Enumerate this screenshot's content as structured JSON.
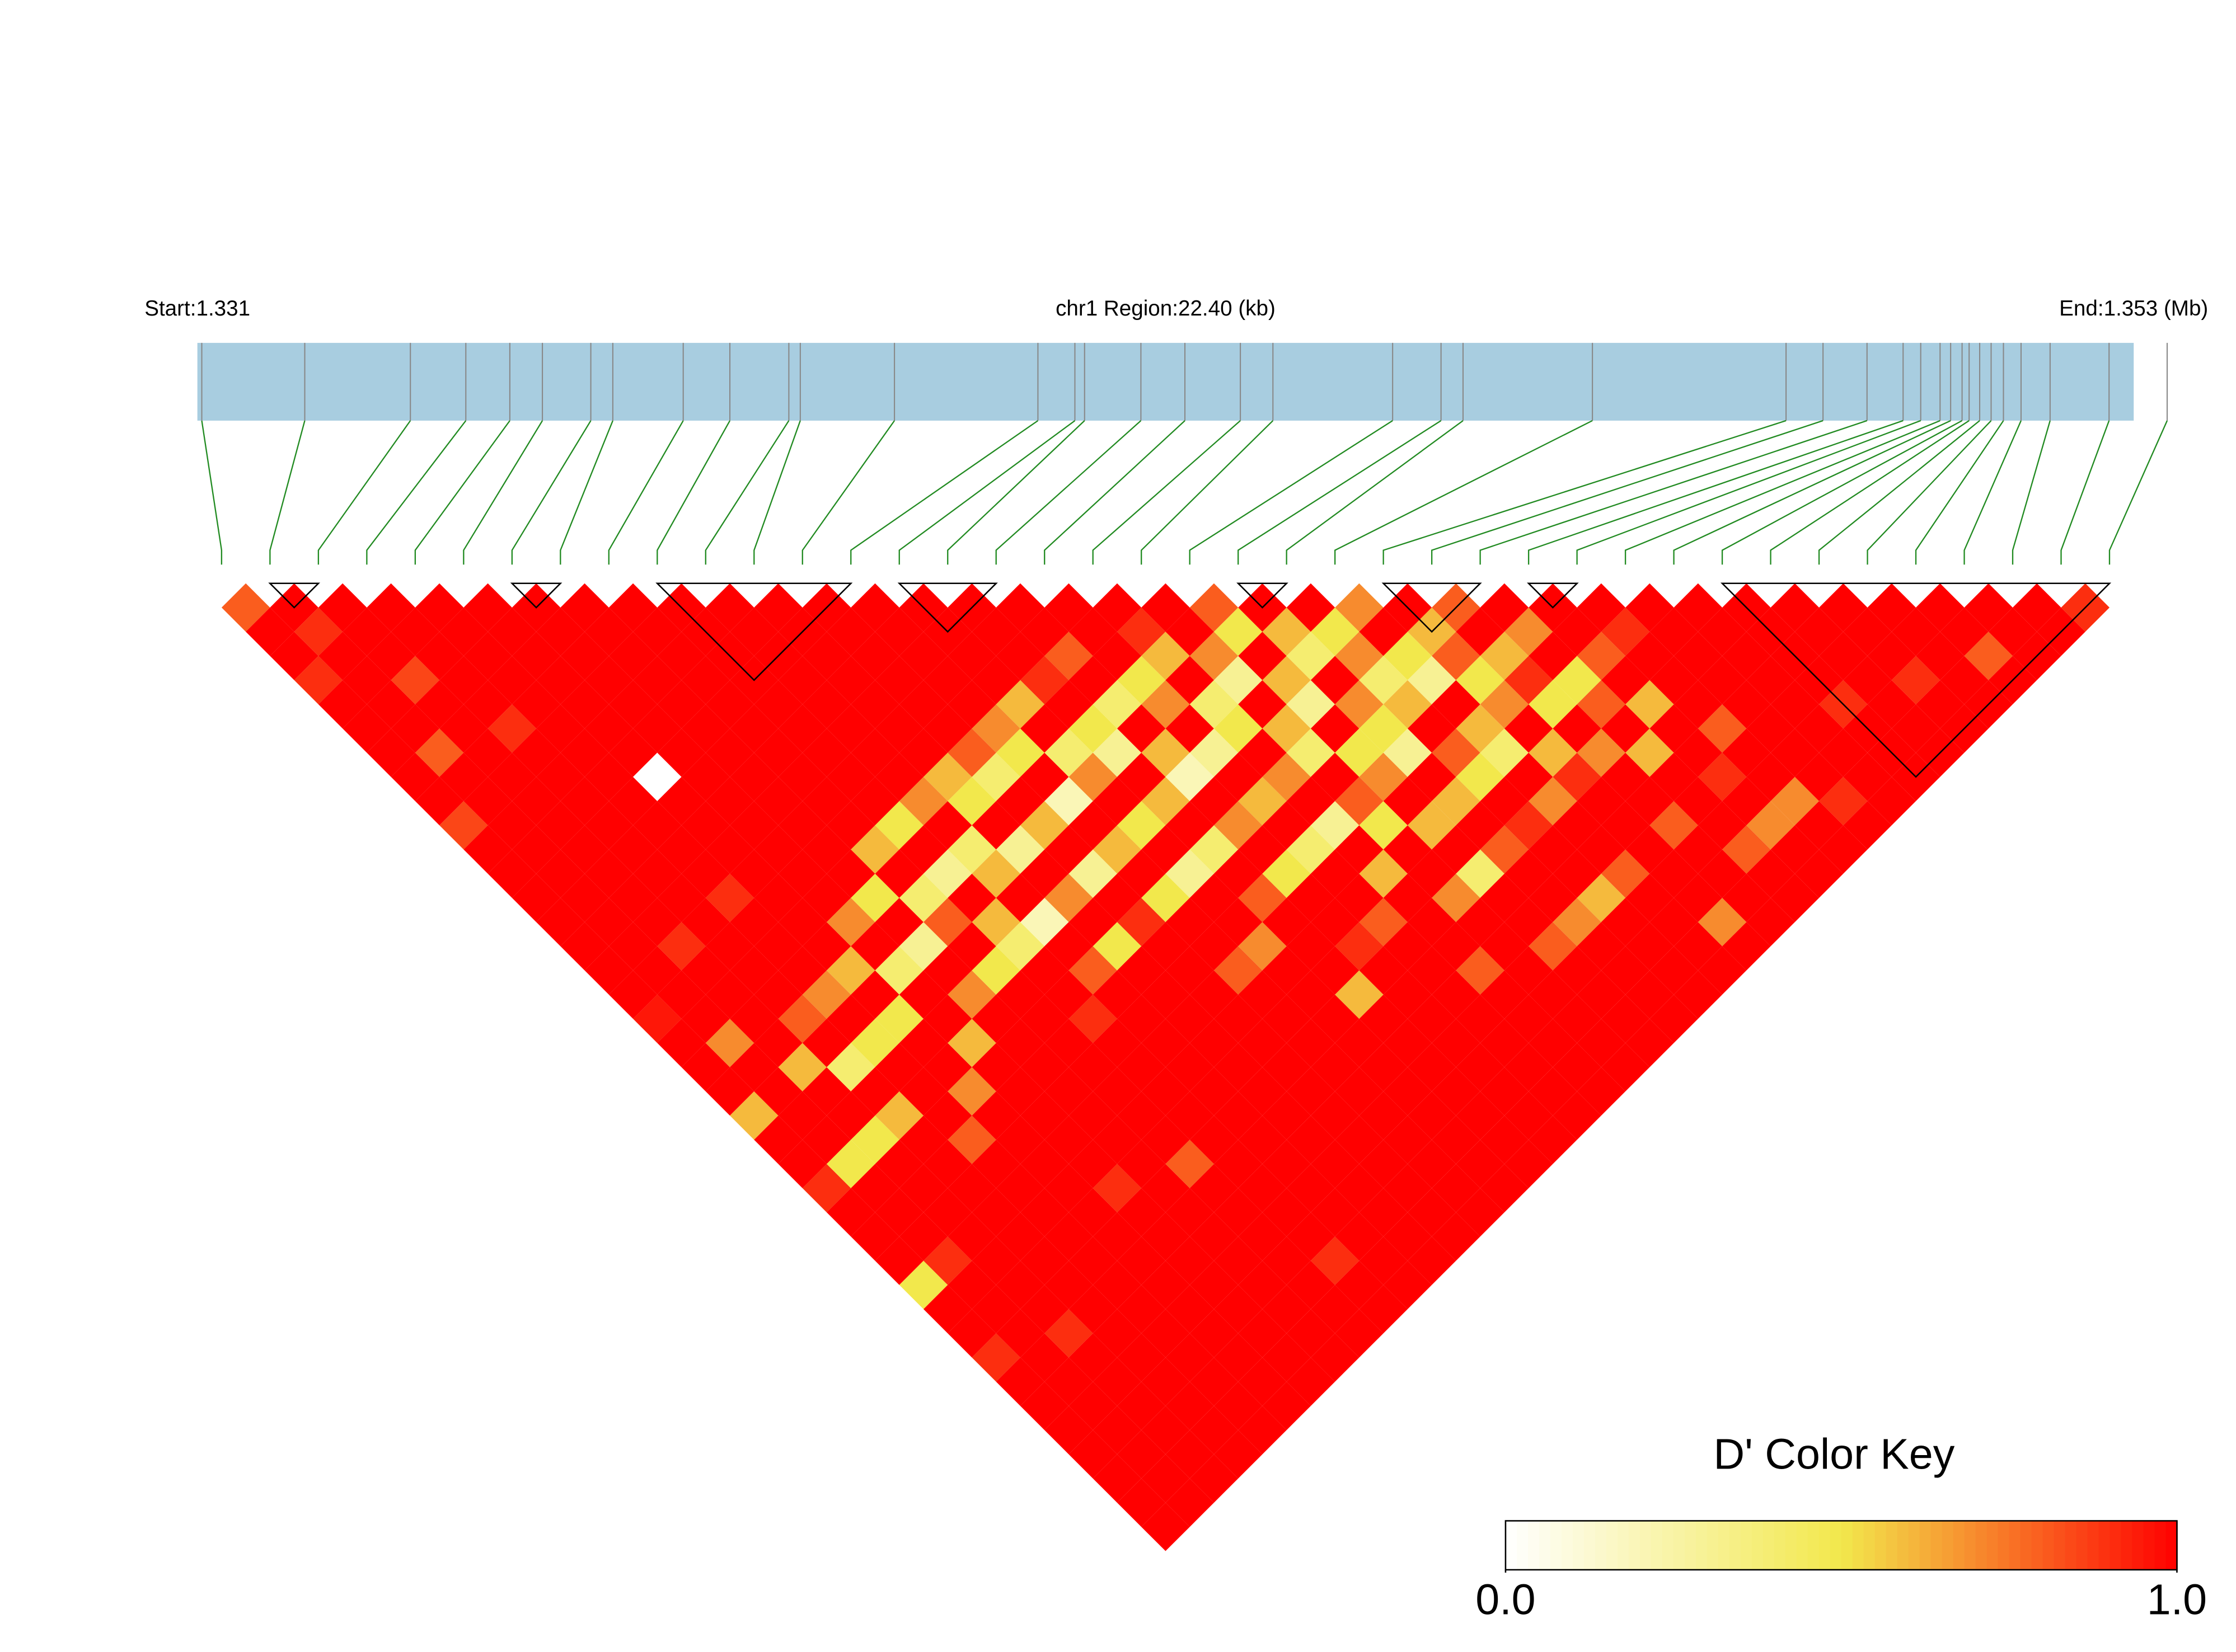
{
  "chart_data": {
    "type": "ld_heatmap",
    "start_label": "Start:1.331",
    "region_label": "chr1 Region:22.40 (kb)",
    "end_label": "End:1.353 (Mb)",
    "xlim": [
      1.331,
      1.353
    ],
    "positions": [
      1.33105,
      1.33222,
      1.33342,
      1.33405,
      1.33455,
      1.33492,
      1.33547,
      1.33572,
      1.33652,
      1.33705,
      1.33772,
      1.33785,
      1.33892,
      1.34055,
      1.34097,
      1.34108,
      1.34172,
      1.34222,
      1.34285,
      1.34322,
      1.34458,
      1.34513,
      1.34538,
      1.34685,
      1.34905,
      1.34947,
      1.34997,
      1.35038,
      1.35058,
      1.3508,
      1.35092,
      1.35105,
      1.35113,
      1.35125,
      1.35138,
      1.35152,
      1.35172,
      1.35205,
      1.35272,
      1.35338
    ],
    "dprime": [
      [
        0.8,
        1,
        1,
        0.9,
        1,
        1,
        1,
        1,
        1,
        0.85,
        1,
        1,
        1,
        1,
        1,
        1,
        1,
        0.95,
        1,
        1,
        1,
        0.6,
        1,
        1,
        0.9,
        1,
        1,
        1,
        0.5,
        1,
        1,
        0.9,
        1,
        1,
        1,
        1,
        1,
        1,
        1
      ],
      [
        1,
        0.9,
        1,
        1,
        1,
        1,
        0.8,
        1,
        1,
        1,
        1,
        1,
        1,
        1,
        1,
        1,
        1,
        1,
        0.7,
        1,
        1,
        1,
        1,
        0.5,
        1,
        1,
        1,
        0.9,
        1,
        1,
        1,
        1,
        1,
        1,
        1,
        1,
        1,
        1
      ],
      [
        1,
        1,
        1,
        0.85,
        1,
        1,
        1,
        1,
        1,
        1,
        1,
        1,
        1,
        1,
        0.9,
        1,
        1,
        1,
        1,
        0.6,
        1,
        1,
        0.5,
        1,
        1,
        1,
        1,
        1,
        1,
        1,
        0.9,
        1,
        1,
        1,
        1,
        1,
        1
      ],
      [
        1,
        1,
        1,
        1,
        1,
        0.9,
        1,
        1,
        1,
        1,
        1,
        1,
        1,
        1,
        1,
        1,
        1,
        0.8,
        1,
        0.4,
        1,
        0.6,
        1,
        1,
        1,
        1,
        1,
        1,
        1,
        1,
        1,
        1,
        1,
        1,
        1,
        1
      ],
      [
        1,
        1,
        1,
        1,
        1,
        1,
        1,
        1,
        1,
        1,
        1,
        1,
        0.9,
        1,
        1,
        1,
        0.7,
        1,
        0.5,
        1,
        1,
        1,
        0.8,
        1,
        1,
        1,
        1,
        1,
        1,
        1,
        1,
        1,
        1,
        1,
        1
      ],
      [
        1,
        1,
        1,
        1,
        1,
        1,
        1,
        0,
        1,
        1,
        1,
        1,
        1,
        1,
        1,
        0.6,
        1,
        0.5,
        1,
        1,
        0.7,
        1,
        1,
        1,
        1,
        1,
        1,
        1,
        1,
        1,
        1,
        1,
        1,
        1
      ],
      [
        1,
        1,
        1,
        1,
        1,
        1,
        1,
        1,
        1,
        1,
        1,
        1,
        1,
        0.7,
        1,
        0.4,
        1,
        1,
        0.6,
        1,
        1,
        1,
        1,
        1,
        0.9,
        1,
        1,
        1,
        1,
        1,
        1,
        1,
        1
      ],
      [
        1,
        1,
        1,
        1,
        1,
        1,
        1,
        1,
        1,
        1,
        1,
        1,
        0.5,
        1,
        0.3,
        1,
        0.7,
        1,
        1,
        1,
        1,
        1,
        1,
        1,
        1,
        1,
        1,
        1,
        1,
        1,
        1,
        1
      ],
      [
        1,
        1,
        1,
        1,
        1,
        1,
        1,
        1,
        1,
        1,
        0.6,
        1,
        0.4,
        0.8,
        1,
        0.5,
        1,
        1,
        1,
        1,
        1,
        1,
        1,
        0.8,
        1,
        1,
        1,
        1,
        1,
        1,
        1
      ],
      [
        1,
        1,
        1,
        1,
        1,
        1,
        1,
        1,
        1,
        0.5,
        1,
        0.3,
        1,
        0.6,
        0.4,
        1,
        1,
        0.9,
        1,
        1,
        1,
        1,
        1,
        1,
        1,
        1,
        1,
        0.9,
        1,
        1
      ],
      [
        1,
        1,
        1,
        1,
        1,
        1,
        1,
        1,
        0.7,
        1,
        0.4,
        0.6,
        1,
        0.2,
        1,
        0.8,
        1,
        1,
        1,
        1,
        1,
        1,
        1,
        1,
        1,
        1,
        1,
        1,
        1
      ],
      [
        1,
        1,
        1,
        1,
        1,
        1,
        1,
        0.6,
        0.5,
        1,
        0.3,
        1,
        0.7,
        1,
        0.5,
        1,
        1,
        1,
        1,
        1,
        1,
        1,
        1,
        1,
        1,
        1,
        1,
        1
      ],
      [
        1,
        1,
        1,
        1,
        1,
        1,
        0.8,
        0.4,
        1,
        0.6,
        1,
        0.3,
        1,
        0.9,
        1,
        1,
        1,
        1,
        1,
        1,
        1,
        1,
        1,
        1,
        1,
        1,
        1
      ],
      [
        1,
        1,
        1,
        1,
        1,
        0.7,
        0.5,
        1,
        0.2,
        1,
        0.6,
        1,
        0.5,
        1,
        1,
        0.8,
        1,
        1,
        1,
        1,
        1,
        1,
        1,
        1,
        1,
        1
      ],
      [
        1,
        1,
        1,
        1,
        0.6,
        1,
        0.4,
        0.7,
        1,
        0.5,
        1,
        0.3,
        1,
        1,
        0.7,
        1,
        1,
        1,
        1,
        1,
        1,
        1,
        1,
        1,
        1
      ],
      [
        1,
        1,
        1,
        0.9,
        1,
        0.5,
        0.3,
        1,
        0.6,
        1,
        0.4,
        1,
        0.8,
        1,
        1,
        1,
        0.6,
        1,
        1,
        1,
        1,
        1,
        1,
        1
      ],
      [
        1,
        1,
        0.8,
        1,
        0.4,
        1,
        0.6,
        0.2,
        1,
        0.7,
        1,
        0.5,
        1,
        1,
        0.9,
        1,
        1,
        1,
        1,
        1,
        1,
        1,
        1
      ],
      [
        1,
        1,
        1,
        0.5,
        0.7,
        1,
        0.3,
        1,
        0.6,
        1,
        0.4,
        1,
        1,
        0.8,
        1,
        1,
        1,
        1,
        1,
        1,
        1,
        1
      ],
      [
        1,
        0.9,
        0.6,
        1,
        0.4,
        0.5,
        1,
        0.7,
        1,
        0.3,
        1,
        0.6,
        1,
        1,
        1,
        0.8,
        1,
        1,
        1,
        1,
        1
      ],
      [
        1,
        1,
        0.7,
        0.3,
        1,
        0.6,
        0.4,
        1,
        0.8,
        0.5,
        1,
        1,
        0.7,
        1,
        1,
        1,
        1,
        1,
        1,
        1
      ],
      [
        0.8,
        0.5,
        1,
        0.6,
        0.3,
        1,
        0.5,
        0.7,
        1,
        0.6,
        1,
        0.4,
        1,
        1,
        0.8,
        1,
        1,
        1,
        1
      ],
      [
        1,
        0.6,
        0.4,
        1,
        0.7,
        0.5,
        0.3,
        1,
        0.6,
        1,
        0.8,
        1,
        1,
        0.7,
        1,
        1,
        1,
        1
      ],
      [
        1,
        0.5,
        0.7,
        0.4,
        0.6,
        1,
        0.8,
        0.5,
        1,
        0.9,
        1,
        1,
        0.6,
        1,
        1,
        1,
        1
      ],
      [
        0.7,
        1,
        0.5,
        0.3,
        1,
        0.6,
        0.4,
        1,
        0.7,
        1,
        1,
        0.8,
        1,
        1,
        1,
        1
      ],
      [
        1,
        0.6,
        0.8,
        0.5,
        0.7,
        1,
        0.6,
        0.9,
        1,
        1,
        1,
        1,
        1,
        0.7,
        1
      ],
      [
        0.8,
        1,
        0.6,
        0.9,
        0.5,
        1,
        0.7,
        1,
        1,
        0.8,
        1,
        1,
        1,
        1
      ],
      [
        1,
        0.7,
        1,
        0.5,
        0.8,
        1,
        0.6,
        1,
        1,
        1,
        0.8,
        1,
        1
      ],
      [
        1,
        1,
        0.8,
        1,
        0.6,
        1,
        1,
        0.9,
        1,
        0.7,
        1,
        1
      ],
      [
        1,
        0.9,
        1,
        1,
        1,
        0.8,
        1,
        1,
        0.7,
        1,
        1
      ],
      [
        1,
        1,
        1,
        1,
        1,
        1,
        1,
        1,
        0.9,
        1
      ],
      [
        1,
        1,
        1,
        1,
        1,
        1,
        1,
        1,
        1
      ],
      [
        1,
        1,
        1,
        1,
        0.9,
        1,
        1,
        1
      ],
      [
        1,
        1,
        1,
        1,
        1,
        1,
        1
      ],
      [
        1,
        1,
        1,
        0.9,
        1,
        1
      ],
      [
        1,
        1,
        1,
        1,
        1
      ],
      [
        1,
        1,
        0.8,
        1
      ],
      [
        1,
        1,
        1
      ],
      [
        1,
        1
      ],
      [
        0.9
      ]
    ],
    "blocks": [
      [
        1,
        2
      ],
      [
        6,
        7
      ],
      [
        9,
        13
      ],
      [
        14,
        16
      ],
      [
        21,
        22
      ],
      [
        24,
        26
      ],
      [
        27,
        28
      ],
      [
        31,
        39
      ]
    ],
    "colors": [
      "#ffffff",
      "#f2e84c",
      "#ff0000"
    ],
    "key_title": "D' Color Key",
    "key_ticks": [
      {
        "value": 0,
        "label": "0.0"
      },
      {
        "value": 1,
        "label": "1.0"
      }
    ]
  }
}
